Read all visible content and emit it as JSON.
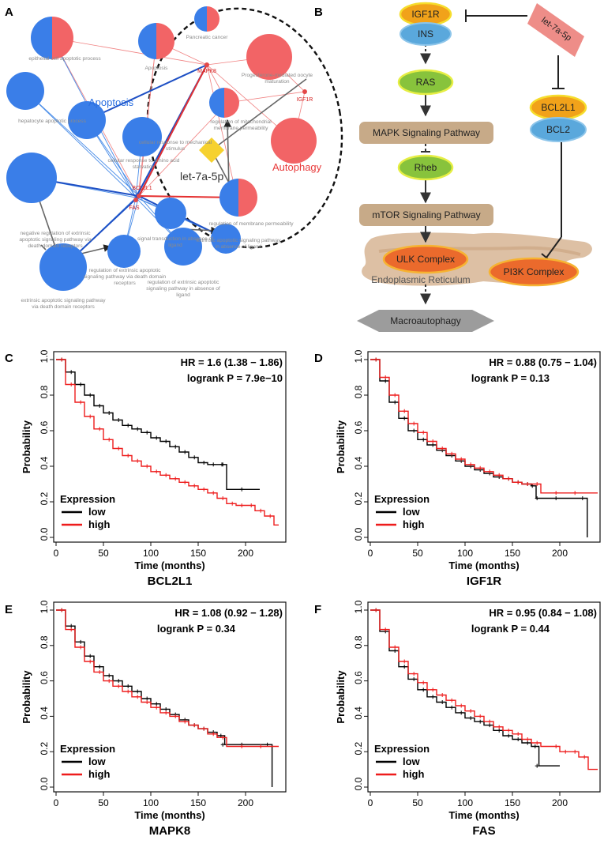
{
  "panels": {
    "a": "A",
    "b": "B",
    "c": "C",
    "d": "D",
    "e": "E",
    "f": "F"
  },
  "network": {
    "group_apoptosis": "Apoptosis",
    "group_autophagy": "Autophagy",
    "mirna": "let-7a-5p",
    "terms": {
      "epithelial": "epithelial cell apoptotic process",
      "apoptosis": "Apoptosis",
      "pancreatic": "Pancreatic cancer",
      "progesterone1": "Progesterone-mediated oocyte",
      "progesterone2": "maturation",
      "hepatocyte": "hepatocyte apoptotic process",
      "mito1": "regulation of mitochondrial",
      "mito2": "membrane permeability",
      "mech1": "cellular response to mechanical",
      "mech2": "stimulus",
      "starv1": "cellular response to amino acid",
      "starv2": "starvation",
      "memb": "regulation of membrane permeability",
      "neg1": "negative regulation of extrinsic",
      "neg2": "apoptotic signaling pathway via",
      "neg3": "death domain receptors",
      "signal1": "signal transduction in absence of",
      "signal2": "ligand",
      "extabs1": "extrinsic apoptotic signaling pathway",
      "extabs2": "in absence of ligand",
      "regext1": "regulation of extrinsic apoptotic",
      "regext2": "signaling pathway via death domain",
      "regext3": "receptors",
      "extdd1": "extrinsic apoptotic signaling pathway",
      "extdd2": "via death domain receptors",
      "regabs1": "regulation of extrinsic apoptotic",
      "regabs2": "signaling pathway in absence of",
      "regabs3": "ligand"
    },
    "genes": {
      "mapk8": "MAPK8",
      "igf1r": "IGF1R",
      "bcl2l1": "BCL2L1",
      "fas": "FAS"
    },
    "colors": {
      "apoptosis": "#3a7ee8",
      "autophagy": "#f26466",
      "mirna": "#f6d12f"
    }
  },
  "pathway": {
    "igf1r": "IGF1R",
    "ins": "INS",
    "mirna": "let-7a-5p",
    "ras": "RAS",
    "bcl2l1": "BCL2L1",
    "bcl2": "BCL2",
    "mapk": "MAPK Signaling Pathway",
    "rheb": "Rheb",
    "mtor": "mTOR Signaling Pathway",
    "ulk": "ULK Complex",
    "pi3k": "PI3K Complex",
    "er": "Endoplasmic Reticulum",
    "macro": "Macroautophagy"
  },
  "chart_data": [
    {
      "type": "line",
      "panel": "C",
      "gene": "BCL2L1",
      "hr": "HR = 1.6 (1.38 − 1.86)",
      "logrank": "logrank P = 7.9e−10",
      "xlabel": "Time (months)",
      "ylabel": "Probability",
      "legend_title": "Expression",
      "xlim": [
        0,
        240
      ],
      "ylim": [
        0,
        1
      ],
      "xticks": [
        0,
        50,
        100,
        150,
        200
      ],
      "yticks": [
        0.0,
        0.2,
        0.4,
        0.6,
        0.8,
        1.0
      ],
      "series": [
        {
          "name": "low",
          "color": "#000000",
          "x": [
            0,
            10,
            20,
            30,
            40,
            50,
            60,
            70,
            80,
            90,
            100,
            110,
            120,
            130,
            140,
            150,
            160,
            170,
            179,
            180,
            200,
            215
          ],
          "y": [
            1.0,
            0.93,
            0.86,
            0.8,
            0.74,
            0.7,
            0.66,
            0.63,
            0.61,
            0.59,
            0.56,
            0.54,
            0.51,
            0.48,
            0.45,
            0.42,
            0.41,
            0.41,
            0.41,
            0.27,
            0.27,
            0.27
          ]
        },
        {
          "name": "high",
          "color": "#ee1c1c",
          "x": [
            0,
            10,
            20,
            30,
            40,
            50,
            60,
            70,
            80,
            90,
            100,
            110,
            120,
            130,
            140,
            150,
            160,
            170,
            180,
            190,
            200,
            210,
            220,
            230,
            235
          ],
          "y": [
            1.0,
            0.86,
            0.76,
            0.68,
            0.61,
            0.55,
            0.5,
            0.46,
            0.43,
            0.4,
            0.37,
            0.35,
            0.33,
            0.31,
            0.29,
            0.27,
            0.25,
            0.22,
            0.19,
            0.18,
            0.18,
            0.15,
            0.12,
            0.07,
            0.07
          ]
        }
      ]
    },
    {
      "type": "line",
      "panel": "D",
      "gene": "IGF1R",
      "hr": "HR = 0.88 (0.75 − 1.04)",
      "logrank": "logrank P = 0.13",
      "xlabel": "Time (months)",
      "ylabel": "Probability",
      "legend_title": "Expression",
      "xlim": [
        0,
        240
      ],
      "ylim": [
        0,
        1
      ],
      "xticks": [
        0,
        50,
        100,
        150,
        200
      ],
      "yticks": [
        0.0,
        0.2,
        0.4,
        0.6,
        0.8,
        1.0
      ],
      "series": [
        {
          "name": "low",
          "color": "#000000",
          "x": [
            0,
            10,
            20,
            30,
            40,
            50,
            60,
            70,
            80,
            90,
            100,
            110,
            120,
            130,
            140,
            150,
            160,
            170,
            175,
            180,
            200,
            228,
            229
          ],
          "y": [
            1.0,
            0.88,
            0.76,
            0.67,
            0.6,
            0.55,
            0.52,
            0.49,
            0.46,
            0.43,
            0.4,
            0.38,
            0.36,
            0.34,
            0.33,
            0.31,
            0.3,
            0.29,
            0.22,
            0.22,
            0.22,
            0.22,
            0.0
          ]
        },
        {
          "name": "high",
          "color": "#ee1c1c",
          "x": [
            0,
            10,
            20,
            30,
            40,
            50,
            60,
            70,
            80,
            90,
            100,
            110,
            120,
            130,
            140,
            150,
            160,
            170,
            180,
            200,
            220,
            240
          ],
          "y": [
            1.0,
            0.9,
            0.8,
            0.71,
            0.64,
            0.59,
            0.54,
            0.5,
            0.47,
            0.44,
            0.41,
            0.39,
            0.37,
            0.35,
            0.33,
            0.31,
            0.3,
            0.3,
            0.25,
            0.25,
            0.25,
            0.25
          ]
        }
      ]
    },
    {
      "type": "line",
      "panel": "E",
      "gene": "MAPK8",
      "hr": "HR = 1.08 (0.92 − 1.28)",
      "logrank": "logrank P = 0.34",
      "xlabel": "Time (months)",
      "ylabel": "Probability",
      "legend_title": "Expression",
      "xlim": [
        0,
        240
      ],
      "ylim": [
        0,
        1
      ],
      "xticks": [
        0,
        50,
        100,
        150,
        200
      ],
      "yticks": [
        0.0,
        0.2,
        0.4,
        0.6,
        0.8,
        1.0
      ],
      "series": [
        {
          "name": "low",
          "color": "#000000",
          "x": [
            0,
            10,
            20,
            30,
            40,
            50,
            60,
            70,
            80,
            90,
            100,
            110,
            120,
            130,
            140,
            150,
            160,
            170,
            178,
            180,
            200,
            227,
            228
          ],
          "y": [
            1.0,
            0.91,
            0.82,
            0.74,
            0.68,
            0.63,
            0.6,
            0.57,
            0.54,
            0.5,
            0.47,
            0.44,
            0.41,
            0.38,
            0.35,
            0.33,
            0.31,
            0.29,
            0.24,
            0.24,
            0.24,
            0.24,
            0.0
          ]
        },
        {
          "name": "high",
          "color": "#ee1c1c",
          "x": [
            0,
            10,
            20,
            30,
            40,
            50,
            60,
            70,
            80,
            90,
            100,
            110,
            120,
            130,
            140,
            150,
            160,
            170,
            180,
            200,
            220,
            235
          ],
          "y": [
            1.0,
            0.89,
            0.79,
            0.71,
            0.65,
            0.6,
            0.57,
            0.54,
            0.51,
            0.48,
            0.45,
            0.42,
            0.4,
            0.37,
            0.35,
            0.33,
            0.3,
            0.28,
            0.23,
            0.23,
            0.23,
            0.23
          ]
        }
      ]
    },
    {
      "type": "line",
      "panel": "F",
      "gene": "FAS",
      "hr": "HR = 0.95 (0.84 − 1.08)",
      "logrank": "logrank P = 0.44",
      "xlabel": "Time (months)",
      "ylabel": "Probability",
      "legend_title": "Expression",
      "xlim": [
        0,
        240
      ],
      "ylim": [
        0,
        1
      ],
      "xticks": [
        0,
        50,
        100,
        150,
        200
      ],
      "yticks": [
        0.0,
        0.2,
        0.4,
        0.6,
        0.8,
        1.0
      ],
      "series": [
        {
          "name": "low",
          "color": "#000000",
          "x": [
            0,
            10,
            20,
            30,
            40,
            50,
            60,
            70,
            80,
            90,
            100,
            110,
            120,
            130,
            140,
            150,
            160,
            170,
            178,
            180,
            200
          ],
          "y": [
            1.0,
            0.88,
            0.77,
            0.68,
            0.61,
            0.55,
            0.51,
            0.48,
            0.45,
            0.42,
            0.39,
            0.37,
            0.35,
            0.32,
            0.29,
            0.27,
            0.25,
            0.23,
            0.12,
            0.12,
            0.12
          ]
        },
        {
          "name": "high",
          "color": "#ee1c1c",
          "x": [
            0,
            10,
            20,
            30,
            40,
            50,
            60,
            70,
            80,
            90,
            100,
            110,
            120,
            130,
            140,
            150,
            160,
            170,
            180,
            200,
            210,
            220,
            230,
            240
          ],
          "y": [
            1.0,
            0.89,
            0.79,
            0.71,
            0.64,
            0.59,
            0.55,
            0.52,
            0.49,
            0.46,
            0.43,
            0.4,
            0.37,
            0.34,
            0.32,
            0.3,
            0.27,
            0.25,
            0.23,
            0.2,
            0.2,
            0.17,
            0.1,
            0.1
          ]
        }
      ]
    }
  ]
}
